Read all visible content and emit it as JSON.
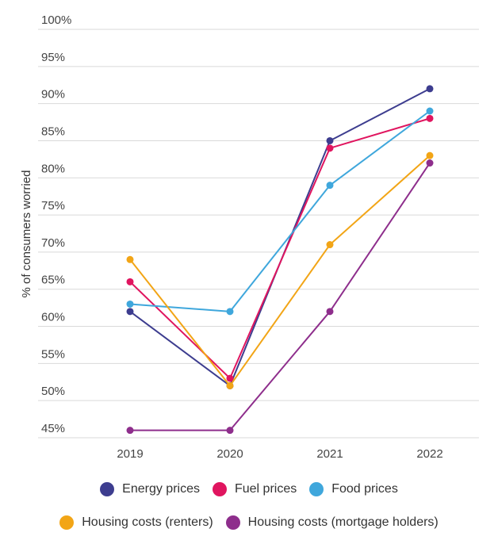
{
  "chart_data": {
    "type": "line",
    "ylabel": "% of consumers worried",
    "xlabel": "",
    "title": "",
    "x": [
      "2019",
      "2020",
      "2021",
      "2022"
    ],
    "ylim": [
      45,
      100
    ],
    "yticks": [
      45,
      50,
      55,
      60,
      65,
      70,
      75,
      80,
      85,
      90,
      95,
      100
    ],
    "ytick_labels": [
      "45%",
      "50%",
      "55%",
      "60%",
      "65%",
      "70%",
      "75%",
      "80%",
      "85%",
      "90%",
      "95%",
      "100%"
    ],
    "grid": "horizontal",
    "legend_position": "bottom",
    "series": [
      {
        "name": "Energy prices",
        "color": "#3d3d8f",
        "values": [
          62,
          52,
          85,
          92
        ]
      },
      {
        "name": "Fuel prices",
        "color": "#e0155f",
        "values": [
          66,
          53,
          84,
          88
        ]
      },
      {
        "name": "Food prices",
        "color": "#3fa7dc",
        "values": [
          63,
          62,
          79,
          89
        ]
      },
      {
        "name": "Housing costs (renters)",
        "color": "#f2a516",
        "values": [
          69,
          52,
          71,
          83
        ]
      },
      {
        "name": "Housing costs (mortgage holders)",
        "color": "#8e2e8c",
        "values": [
          46,
          46,
          62,
          82
        ]
      }
    ]
  }
}
